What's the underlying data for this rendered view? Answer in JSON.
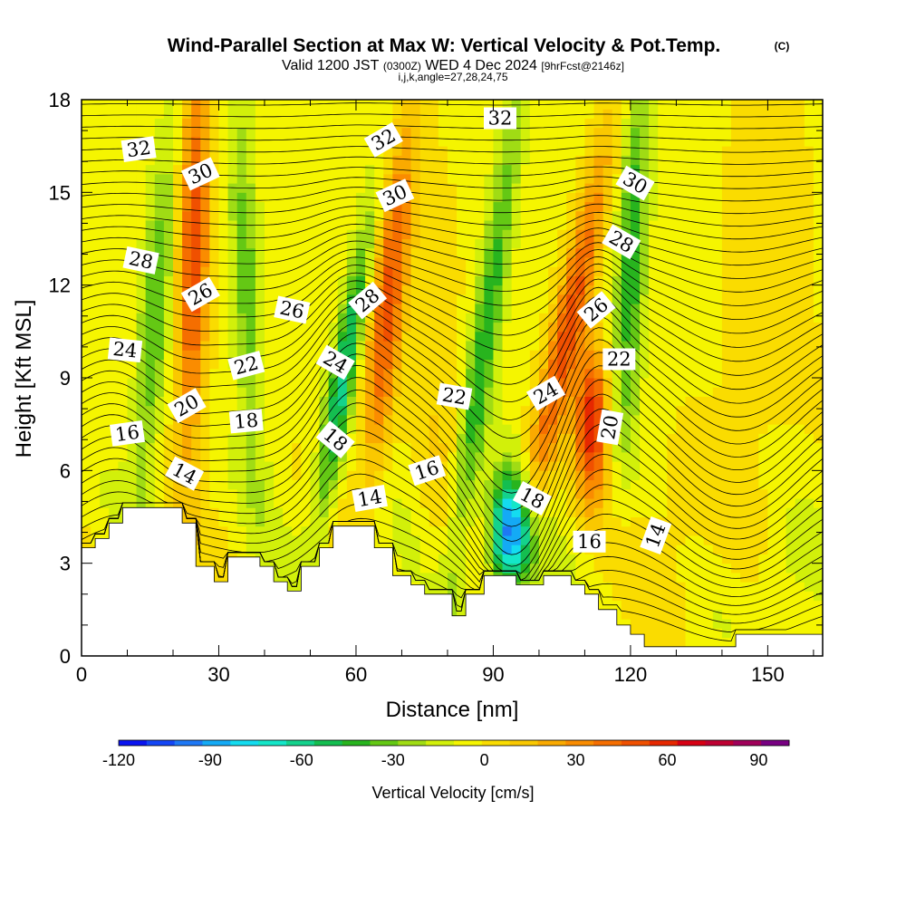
{
  "title": "Wind-Parallel Section at Max W: Vertical Velocity & Pot.Temp.",
  "title_mark": "(C)",
  "subtitle": {
    "valid": "Valid 1200 JST",
    "utc": "(0300Z)",
    "date": "WED 4 Dec 2024",
    "fcst": "[9hrFcst@2146z]",
    "indices": "i,j,k,angle=27,28,24,75"
  },
  "chart_data": {
    "type": "heatmap",
    "xlabel": "Distance [nm]",
    "ylabel": "Height [Kft MSL]",
    "xlim": [
      0,
      162
    ],
    "ylim": [
      0,
      18
    ],
    "xticks": [
      "0",
      "30",
      "60",
      "90",
      "120",
      "150"
    ],
    "yticks": [
      "0",
      "3",
      "6",
      "9",
      "12",
      "15",
      "18"
    ],
    "colorbar": {
      "label": "Vertical Velocity [cm/s]",
      "range": [
        -120,
        100
      ],
      "step": 10,
      "tick_labels": [
        "-120",
        "-90",
        "-60",
        "-30",
        "0",
        "30",
        "60",
        "90"
      ],
      "colors": [
        "#0a14f0",
        "#1446f5",
        "#1e78f5",
        "#14aaf5",
        "#14dcf0",
        "#14e6c8",
        "#14d28c",
        "#14be50",
        "#28b41e",
        "#64c814",
        "#a0dc14",
        "#d2f00a",
        "#f5f500",
        "#fadc00",
        "#fac800",
        "#faaa00",
        "#fa8c00",
        "#f56e00",
        "#f05000",
        "#e62800",
        "#d70014",
        "#be0032",
        "#a0005a",
        "#780082"
      ]
    },
    "theta_contour_labels": [
      {
        "text": "32",
        "x": 12.5,
        "y": 16.4
      },
      {
        "text": "30",
        "x": 26,
        "y": 15.6
      },
      {
        "text": "32",
        "x": 66,
        "y": 16.7
      },
      {
        "text": "32",
        "x": 91.5,
        "y": 17.4
      },
      {
        "text": "30",
        "x": 68.5,
        "y": 14.9
      },
      {
        "text": "30",
        "x": 121,
        "y": 15.3
      },
      {
        "text": "28",
        "x": 13,
        "y": 12.8
      },
      {
        "text": "28",
        "x": 118,
        "y": 13.4
      },
      {
        "text": "26",
        "x": 26,
        "y": 11.7
      },
      {
        "text": "28",
        "x": 62.5,
        "y": 11.5
      },
      {
        "text": "26",
        "x": 46,
        "y": 11.2
      },
      {
        "text": "26",
        "x": 112.5,
        "y": 11.2
      },
      {
        "text": "24",
        "x": 9.5,
        "y": 9.9
      },
      {
        "text": "22",
        "x": 36,
        "y": 9.4
      },
      {
        "text": "24",
        "x": 55.5,
        "y": 9.5
      },
      {
        "text": "22",
        "x": 117.5,
        "y": 9.6
      },
      {
        "text": "22",
        "x": 81.5,
        "y": 8.4
      },
      {
        "text": "24",
        "x": 101.5,
        "y": 8.5
      },
      {
        "text": "20",
        "x": 23,
        "y": 8.1
      },
      {
        "text": "18",
        "x": 36,
        "y": 7.6
      },
      {
        "text": "20",
        "x": 115.5,
        "y": 7.4
      },
      {
        "text": "16",
        "x": 10,
        "y": 7.2
      },
      {
        "text": "18",
        "x": 55.5,
        "y": 7.0
      },
      {
        "text": "16",
        "x": 75.5,
        "y": 6.0
      },
      {
        "text": "14",
        "x": 22.5,
        "y": 5.9
      },
      {
        "text": "14",
        "x": 63,
        "y": 5.1
      },
      {
        "text": "18",
        "x": 98.5,
        "y": 5.1
      },
      {
        "text": "16",
        "x": 111,
        "y": 3.7
      },
      {
        "text": "14",
        "x": 125.5,
        "y": 3.9
      }
    ],
    "terrain": [
      [
        0,
        3.5
      ],
      [
        3,
        3.5
      ],
      [
        3,
        3.8
      ],
      [
        6,
        3.8
      ],
      [
        6,
        4.3
      ],
      [
        9,
        4.3
      ],
      [
        9,
        4.8
      ],
      [
        22,
        4.8
      ],
      [
        22,
        4.3
      ],
      [
        25,
        4.3
      ],
      [
        25,
        2.9
      ],
      [
        29,
        2.9
      ],
      [
        29,
        2.4
      ],
      [
        32,
        2.4
      ],
      [
        32,
        3.2
      ],
      [
        39,
        3.2
      ],
      [
        39,
        2.9
      ],
      [
        42,
        2.9
      ],
      [
        42,
        2.4
      ],
      [
        45,
        2.4
      ],
      [
        45,
        2.1
      ],
      [
        48,
        2.1
      ],
      [
        48,
        2.9
      ],
      [
        52,
        2.9
      ],
      [
        52,
        3.5
      ],
      [
        55,
        3.5
      ],
      [
        55,
        4.2
      ],
      [
        64,
        4.2
      ],
      [
        64,
        3.5
      ],
      [
        68,
        3.5
      ],
      [
        68,
        2.6
      ],
      [
        72,
        2.6
      ],
      [
        72,
        2.3
      ],
      [
        75,
        2.3
      ],
      [
        75,
        2.0
      ],
      [
        81,
        2.0
      ],
      [
        81,
        1.3
      ],
      [
        84,
        1.3
      ],
      [
        84,
        2.0
      ],
      [
        88,
        2.0
      ],
      [
        88,
        2.6
      ],
      [
        95,
        2.6
      ],
      [
        95,
        2.3
      ],
      [
        101,
        2.3
      ],
      [
        101,
        2.6
      ],
      [
        107,
        2.6
      ],
      [
        107,
        2.3
      ],
      [
        110,
        2.3
      ],
      [
        110,
        2.0
      ],
      [
        113,
        2.0
      ],
      [
        113,
        1.5
      ],
      [
        117,
        1.5
      ],
      [
        117,
        1.0
      ],
      [
        120,
        1.0
      ],
      [
        120,
        0.7
      ],
      [
        123,
        0.7
      ],
      [
        123,
        0.3
      ],
      [
        143,
        0.3
      ],
      [
        143,
        0.7
      ],
      [
        162,
        0.7
      ],
      [
        162,
        0
      ],
      [
        0,
        0
      ]
    ]
  }
}
